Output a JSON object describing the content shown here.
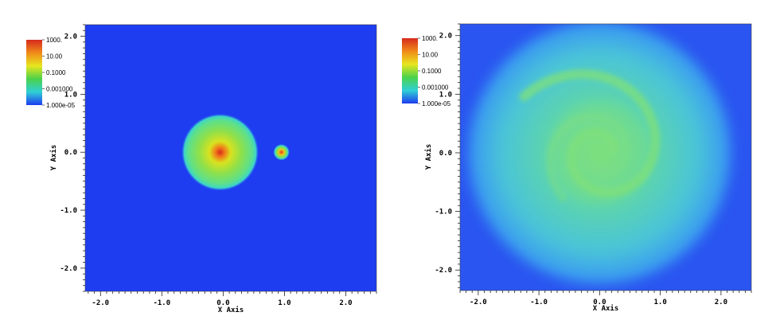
{
  "chart_data": [
    {
      "type": "heatmap",
      "xlabel": "X Axis",
      "ylabel": "Y Axis",
      "xlim": [
        -2.25,
        2.5
      ],
      "ylim": [
        -2.4,
        2.2
      ],
      "x_ticks": [
        -2.0,
        -1.0,
        0.0,
        1.0,
        2.0
      ],
      "y_ticks": [
        -2.0,
        -1.0,
        0.0,
        1.0,
        2.0
      ],
      "x_tick_labels": [
        "-2.0",
        "-1.0",
        "0.0",
        "1.0",
        "2.0"
      ],
      "y_tick_labels": [
        "-2.0",
        "-1.0",
        "0.0",
        "1.0",
        "2.0"
      ],
      "colorbar": {
        "scale": "log",
        "labels": [
          "1000.",
          "10.00",
          "0.1000",
          "0.001000",
          "1.000e-05"
        ],
        "colors": [
          "#d62a1e",
          "#f08a1a",
          "#e8e61f",
          "#4bd24b",
          "#2fd0d6",
          "#1e3cf0"
        ]
      },
      "background_color": "#1e3cf0",
      "features": [
        {
          "kind": "disk",
          "center": [
            -0.05,
            0.0
          ],
          "radius": 0.6
        },
        {
          "kind": "disk",
          "center": [
            0.95,
            0.0
          ],
          "radius": 0.13
        }
      ]
    },
    {
      "type": "heatmap",
      "xlabel": "X Axis",
      "ylabel": "Y Axis",
      "xlim": [
        -2.3,
        2.5
      ],
      "ylim": [
        -2.35,
        2.2
      ],
      "x_ticks": [
        -2.0,
        -1.0,
        0.0,
        1.0,
        2.0
      ],
      "y_ticks": [
        -2.0,
        -1.0,
        0.0,
        1.0,
        2.0
      ],
      "x_tick_labels": [
        "-2.0",
        "-1.0",
        "0.0",
        "1.0",
        "2.0"
      ],
      "y_tick_labels": [
        "-2.0",
        "-1.0",
        "0.0",
        "1.0",
        "2.0"
      ],
      "colorbar": {
        "scale": "log",
        "labels": [
          "1000.",
          "10.00",
          "0.1000",
          "0.001000",
          "1.000e-05"
        ],
        "colors": [
          "#d62a1e",
          "#f08a1a",
          "#e8e61f",
          "#4bd24b",
          "#2fd0d6",
          "#1e3cf0"
        ]
      },
      "background_color": "#1e3cf0",
      "features": [
        {
          "kind": "disk",
          "center": [
            0.0,
            0.0
          ],
          "radius": 0.15
        },
        {
          "kind": "spiral-disk",
          "center": [
            0.0,
            0.0
          ],
          "radius": 2.0
        }
      ]
    }
  ]
}
